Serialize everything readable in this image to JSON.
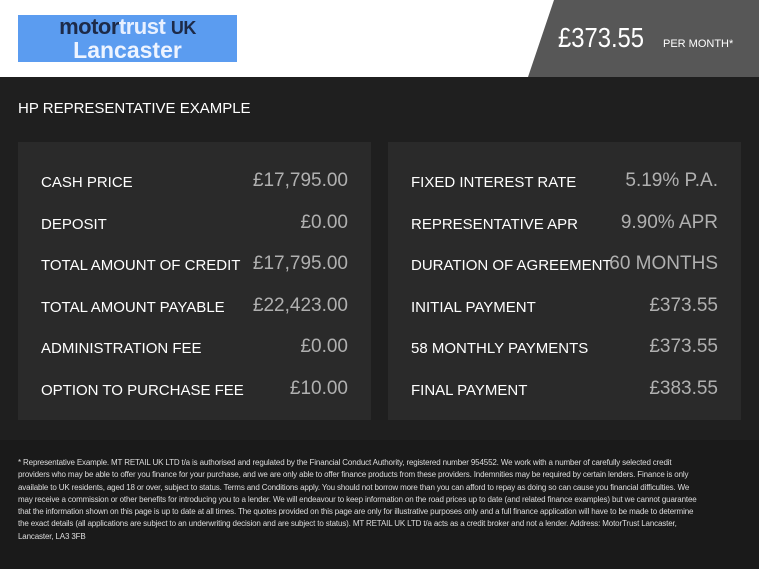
{
  "header": {
    "logo_line1_a": "motor",
    "logo_line1_b": "trust",
    "logo_line1_c": "UK",
    "logo_line2": "Lancaster",
    "price": "£373.55",
    "per_month": "PER MONTH*"
  },
  "title": "HP REPRESENTATIVE EXAMPLE",
  "left": [
    {
      "label": "CASH PRICE",
      "value": "£17,795.00"
    },
    {
      "label": "DEPOSIT",
      "value": "£0.00"
    },
    {
      "label": "TOTAL AMOUNT OF CREDIT",
      "value": "£17,795.00"
    },
    {
      "label": "TOTAL AMOUNT PAYABLE",
      "value": "£22,423.00"
    },
    {
      "label": "ADMINISTRATION FEE",
      "value": "£0.00"
    },
    {
      "label": "OPTION TO PURCHASE FEE",
      "value": "£10.00"
    }
  ],
  "right": [
    {
      "label": "FIXED INTEREST RATE",
      "value": "5.19% P.A."
    },
    {
      "label": "REPRESENTATIVE APR",
      "value": "9.90% APR"
    },
    {
      "label": "DURATION OF AGREEMENT",
      "value": "60 MONTHS"
    },
    {
      "label": "INITIAL PAYMENT",
      "value": "£373.55"
    },
    {
      "label": "58 MONTHLY PAYMENTS",
      "value": "£373.55"
    },
    {
      "label": "FINAL PAYMENT",
      "value": "£383.55"
    }
  ],
  "disclaimer": "* Representative Example. MT RETAIL UK LTD t/a is authorised and regulated by the Financial Conduct Authority, registered number 954552. We work with a number of carefully selected credit providers who may be able to offer you finance for your purchase, and we are only able to offer finance products from these providers. Indemnities may be required by certain lenders. Finance is only available to UK residents, aged 18 or over, subject to status. Terms and Conditions apply. You should not borrow more than you can afford to repay as doing so can cause you financial difficulties. We may receive a commission or other benefits for introducing you to a lender. We will endeavour to keep information on the road prices up to date (and related finance examples) but we cannot guarantee that the information shown on this page is up to date at all times. The quotes provided on this page are only for illustrative purposes only and a full finance application will have to be made to determine the exact details (all applications are subject to an underwriting decision and are subject to status). MT RETAIL UK LTD t/a acts as a credit broker and not a lender. Address: MotorTrust Lancaster, Lancaster, LA3 3FB"
}
